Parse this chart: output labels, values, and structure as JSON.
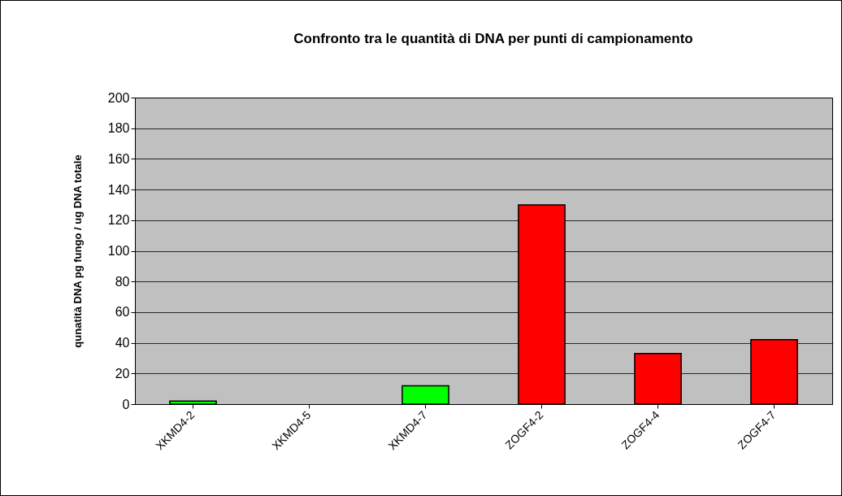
{
  "chart_data": {
    "type": "bar",
    "title": "Confronto tra le quantità di DNA per punti di campionamento",
    "ylabel": "qunatità DNA pg fungo / ug DNA totale",
    "categories": [
      "XKMD4-2",
      "XKMD4-5",
      "XKMD4-7",
      "ZOGF4-2",
      "ZOGF4-4",
      "ZOGF4-7"
    ],
    "values": [
      2,
      null,
      12,
      130,
      33,
      42
    ],
    "colors": [
      "#00ff00",
      "#00ff00",
      "#00ff00",
      "#ff0000",
      "#ff0000",
      "#ff0000"
    ],
    "ylim": [
      0,
      200
    ],
    "yticks": [
      0,
      20,
      40,
      60,
      80,
      100,
      120,
      140,
      160,
      180,
      200
    ],
    "grid": "y"
  }
}
